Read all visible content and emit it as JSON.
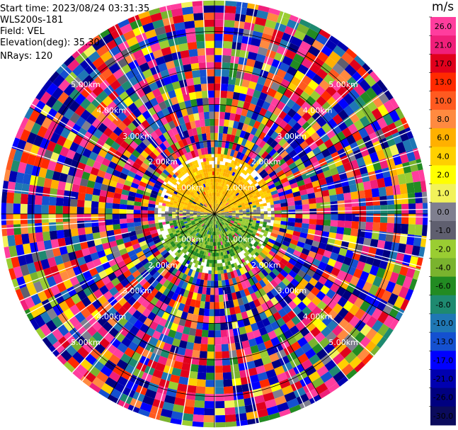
{
  "header": {
    "start_time": "Start time: 2023/08/24 03:31:35",
    "instrument": "WLS200s-181",
    "field": "Field: VEL",
    "elevation": "Elevation(deg): 35.30",
    "nrays": "NRays: 120"
  },
  "chart_data": {
    "type": "heatmap",
    "projection": "polar-ppi",
    "field": "VEL",
    "units": "m/s",
    "nrays": 120,
    "elevation_deg": 35.3,
    "range_rings_km": [
      1.0,
      2.0,
      3.0,
      4.0,
      5.0
    ],
    "ring_labels": [
      "1.00km",
      "2.00km",
      "3.00km",
      "4.00km",
      "5.00km"
    ],
    "max_range_km": 5.85,
    "spoke_angles_deg": [
      0,
      30,
      60,
      90,
      120,
      150,
      180,
      210,
      240,
      270,
      300,
      330
    ],
    "velocity_pattern": [
      {
        "range_km": [
          0.0,
          1.6
        ],
        "azimuth_deg": [
          280,
          360
        ],
        "velocity_ms": [
          2.0,
          6.0
        ]
      },
      {
        "range_km": [
          0.0,
          1.6
        ],
        "azimuth_deg": [
          0,
          80
        ],
        "velocity_ms": [
          2.0,
          6.0
        ]
      },
      {
        "range_km": [
          0.0,
          1.6
        ],
        "azimuth_deg": [
          80,
          100
        ],
        "velocity_ms": [
          -1.0,
          1.0
        ]
      },
      {
        "range_km": [
          0.0,
          1.6
        ],
        "azimuth_deg": [
          100,
          260
        ],
        "velocity_ms": [
          -8.0,
          -2.0
        ]
      },
      {
        "range_km": [
          0.0,
          1.6
        ],
        "azimuth_deg": [
          260,
          280
        ],
        "velocity_ms": [
          -1.0,
          1.0
        ]
      },
      {
        "range_km": [
          1.6,
          5.85
        ],
        "azimuth_deg": [
          0,
          360
        ],
        "velocity_ms": [
          -30.0,
          30.0
        ],
        "note": "noise"
      }
    ],
    "colorbar": {
      "label": "m/s",
      "ticks": [
        "26.0",
        "21.0",
        "17.0",
        "13.0",
        "10.0",
        "8.0",
        "6.0",
        "4.0",
        "2.0",
        "1.0",
        "0.0",
        "-1.0",
        "-2.0",
        "-4.0",
        "-6.0",
        "-8.0",
        "-10.0",
        "-13.0",
        "-17.0",
        "-21.0",
        "-26.0",
        "-30.0"
      ],
      "colors": [
        "#ff3d9e",
        "#f01f7a",
        "#e0001c",
        "#ff2a00",
        "#ff5a20",
        "#ff8a40",
        "#ffb000",
        "#ffd000",
        "#ffff00",
        "#f2f25a",
        "#7f7f8f",
        "#5f5f6f",
        "#9acd32",
        "#7ab32e",
        "#228b22",
        "#1e8a70",
        "#1f77b4",
        "#1450d0",
        "#0000ff",
        "#0000b0",
        "#000080",
        "#0b0b5c"
      ]
    }
  }
}
